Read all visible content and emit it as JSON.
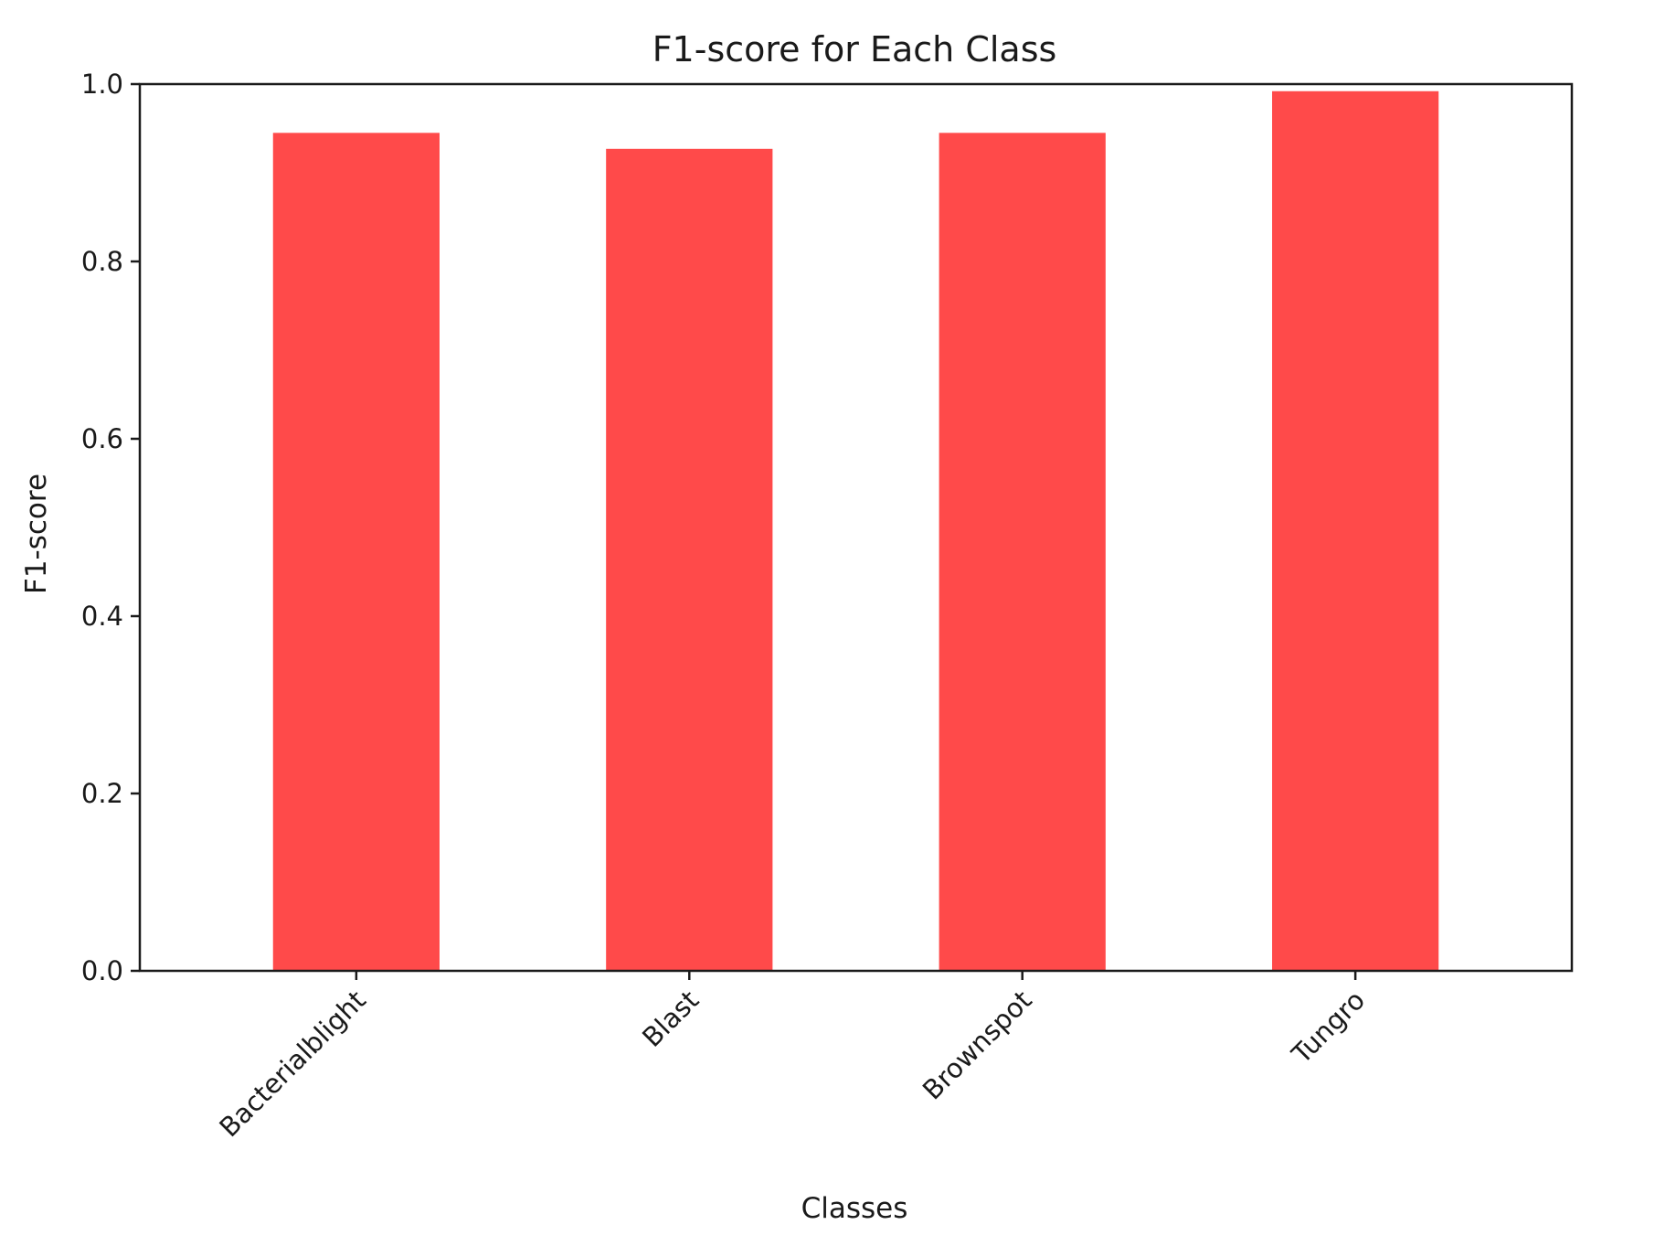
{
  "chart_data": {
    "type": "bar",
    "title": "F1-score for Each Class",
    "xlabel": "Classes",
    "ylabel": "F1-score",
    "categories": [
      "Bacterialblight",
      "Blast",
      "Brownspot",
      "Tungro"
    ],
    "values": [
      0.945,
      0.927,
      0.945,
      0.992
    ],
    "ylim": [
      0,
      1.0
    ],
    "yticks": [
      "0.0",
      "0.2",
      "0.4",
      "0.6",
      "0.8",
      "1.0"
    ],
    "bar_color": "#ff4a4a",
    "grid": false,
    "x_tick_rotation_deg": -45
  }
}
